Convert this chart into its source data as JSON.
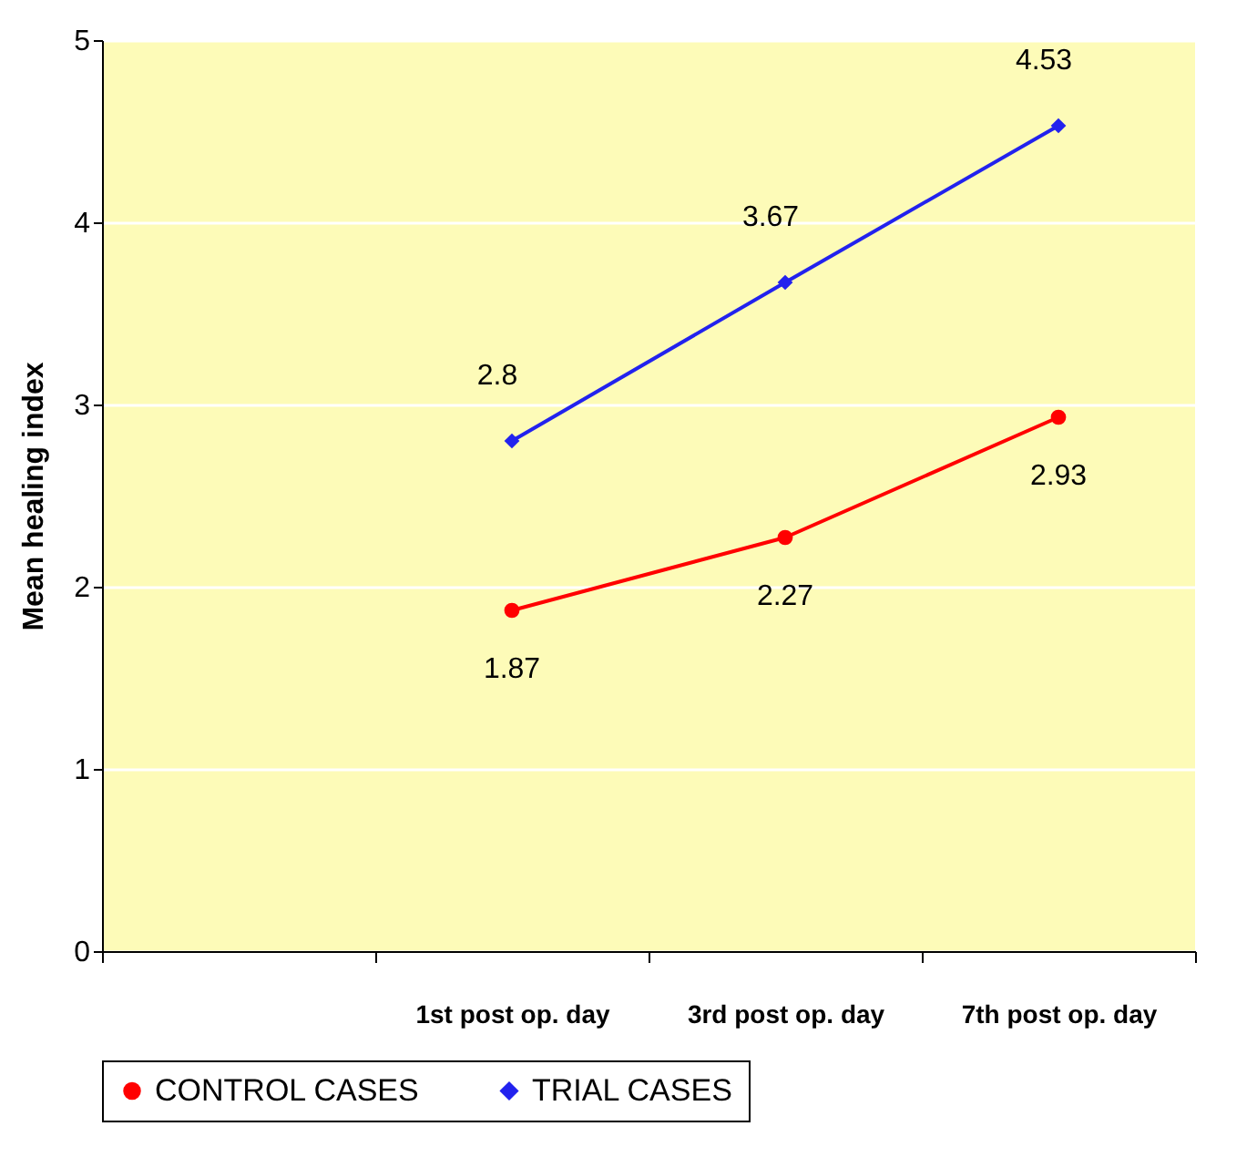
{
  "chart_data": {
    "type": "line",
    "ylabel": "Mean healing index",
    "categories": [
      null,
      "1st post op. day",
      "3rd post op. day",
      "7th post op. day"
    ],
    "series": [
      {
        "name": "CONTROL CASES",
        "color": "#ff0000",
        "marker": "circle",
        "values": [
          null,
          1.87,
          2.27,
          2.93
        ]
      },
      {
        "name": "TRIAL CASES",
        "color": "#2222ee",
        "marker": "diamond",
        "values": [
          null,
          2.8,
          3.67,
          4.53
        ]
      }
    ],
    "ylim": [
      0,
      5
    ],
    "yticks": [
      0,
      1,
      2,
      3,
      4,
      5
    ],
    "grid": "y",
    "legend": "bottom",
    "data_labels": true
  }
}
